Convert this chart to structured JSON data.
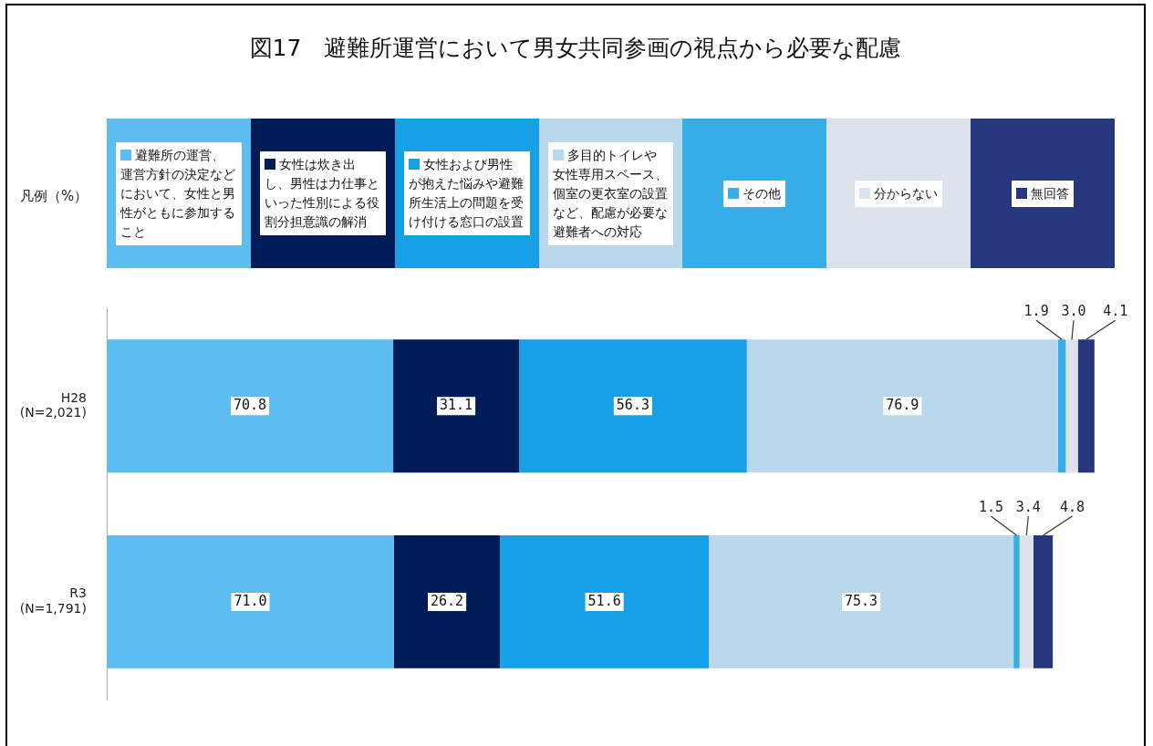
{
  "chart_data": {
    "type": "bar",
    "orientation": "horizontal",
    "stacked": true,
    "title": "図17　避難所運営において男女共同参画の視点から必要な配慮",
    "legend_title": "凡例（%）",
    "legend": "top",
    "categories": [
      "H28\n(N=2,021)",
      "R3\n(N=1,791)"
    ],
    "series": [
      {
        "name": "避難所の運営、運営方針の決定などにおいて、女性と男性がともに参加すること",
        "color": "#5bbdf0",
        "values": [
          70.8,
          71.0
        ],
        "value_labels": [
          "70.8",
          "71.0"
        ]
      },
      {
        "name": "女性は炊き出し、男性は力仕事といった性別による役割分担意識の解消",
        "color": "#001c58",
        "values": [
          31.1,
          26.2
        ],
        "value_labels": [
          "31.1",
          "26.2"
        ]
      },
      {
        "name": "女性および男性が抱えた悩みや避難所生活上の問題を受け付ける窓口の設置",
        "color": "#15a0e8",
        "values": [
          56.3,
          51.6
        ],
        "value_labels": [
          "56.3",
          "51.6"
        ]
      },
      {
        "name": "多目的トイレや女性専用スペース、個室の更衣室の設置など、配慮が必要な避難者への対応",
        "color": "#b9d8ec",
        "values": [
          76.9,
          75.3
        ],
        "value_labels": [
          "76.9",
          "75.3"
        ]
      },
      {
        "name": "その他",
        "color": "#38aee8",
        "values": [
          1.9,
          1.5
        ],
        "value_labels": [
          "1.9",
          "1.5"
        ]
      },
      {
        "name": "分からない",
        "color": "#dde3ec",
        "values": [
          3.0,
          3.4
        ],
        "value_labels": [
          "3.0",
          "3.4"
        ]
      },
      {
        "name": "無回答",
        "color": "#27377f",
        "values": [
          4.1,
          4.8
        ],
        "value_labels": [
          "4.1",
          "4.8"
        ]
      }
    ]
  }
}
